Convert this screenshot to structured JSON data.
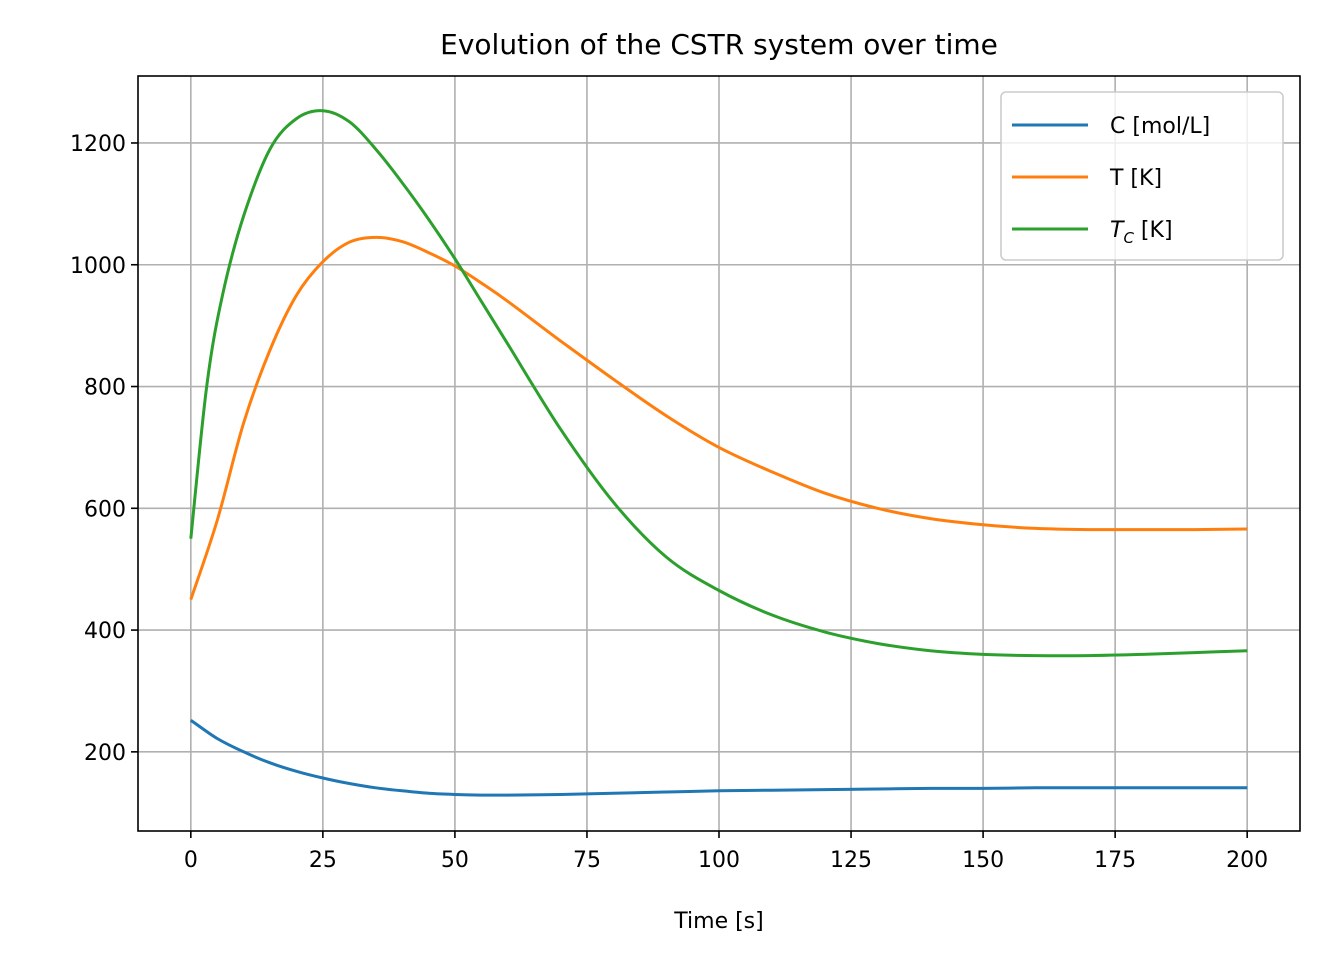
{
  "chart_data": {
    "type": "line",
    "title": "Evolution of the CSTR system over time",
    "xlabel": "Time [s]",
    "ylabel": "",
    "xlim": [
      -10,
      210
    ],
    "ylim": [
      70,
      1310
    ],
    "xticks": [
      0,
      25,
      50,
      75,
      100,
      125,
      150,
      175,
      200
    ],
    "yticks": [
      200,
      400,
      600,
      800,
      1000,
      1200
    ],
    "grid": true,
    "legend_position": "top-right",
    "series": [
      {
        "name": "C [mol/L]",
        "legend_main": "C [mol/L]",
        "legend_sub": "",
        "legend_tail": "",
        "color": "#1f77b4",
        "x": [
          0,
          5,
          10,
          15,
          20,
          25,
          30,
          35,
          40,
          45,
          50,
          55,
          60,
          70,
          80,
          90,
          100,
          110,
          120,
          130,
          140,
          150,
          160,
          170,
          180,
          190,
          200
        ],
        "y": [
          252,
          222,
          200,
          182,
          168,
          157,
          148,
          141,
          136,
          132,
          130,
          129,
          129,
          130,
          132,
          134,
          136,
          137,
          138,
          139,
          140,
          140,
          141,
          141,
          141,
          141,
          141
        ]
      },
      {
        "name": "T [K]",
        "legend_main": "T [K]",
        "legend_sub": "",
        "legend_tail": "",
        "color": "#ff7f0e",
        "x": [
          0,
          5,
          10,
          15,
          20,
          25,
          30,
          35,
          40,
          45,
          50,
          55,
          60,
          70,
          80,
          90,
          100,
          110,
          120,
          130,
          140,
          150,
          160,
          170,
          180,
          190,
          200
        ],
        "y": [
          450,
          580,
          740,
          860,
          950,
          1005,
          1037,
          1045,
          1038,
          1020,
          998,
          970,
          940,
          875,
          812,
          752,
          700,
          660,
          625,
          600,
          583,
          573,
          567,
          565,
          565,
          565,
          566
        ]
      },
      {
        "name": "T_C [K]",
        "legend_main": "T",
        "legend_sub": "C",
        "legend_tail": " [K]",
        "color": "#2ca02c",
        "x": [
          0,
          3,
          6,
          10,
          15,
          20,
          25,
          30,
          35,
          40,
          45,
          50,
          55,
          60,
          70,
          80,
          90,
          100,
          110,
          120,
          130,
          140,
          150,
          160,
          170,
          180,
          190,
          200
        ],
        "y": [
          550,
          800,
          950,
          1080,
          1190,
          1240,
          1253,
          1235,
          1190,
          1135,
          1075,
          1010,
          940,
          870,
          730,
          610,
          520,
          465,
          425,
          397,
          378,
          366,
          360,
          358,
          358,
          360,
          363,
          366
        ]
      }
    ]
  }
}
